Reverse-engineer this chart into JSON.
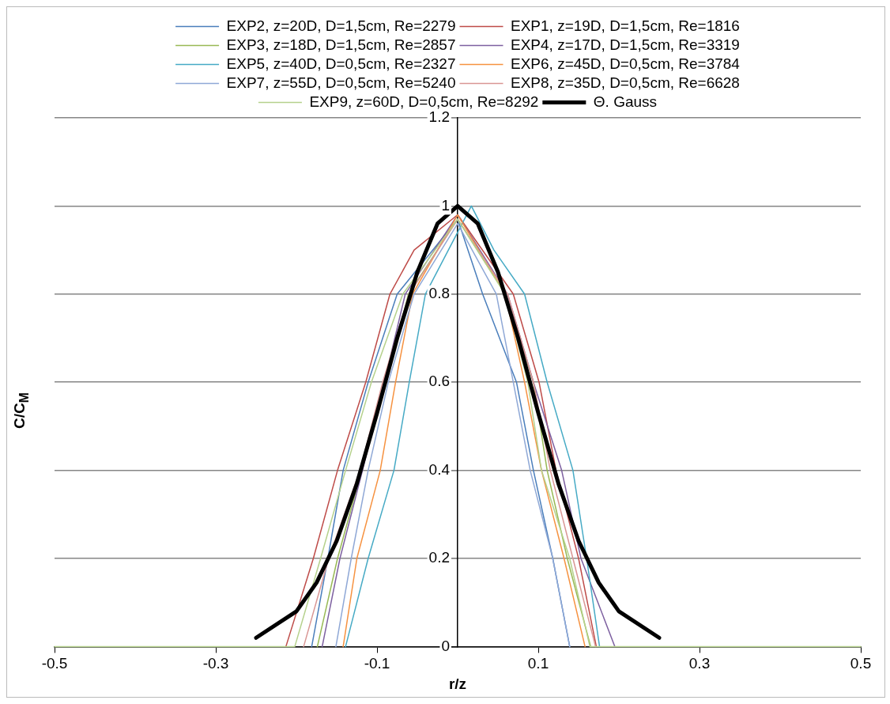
{
  "chart_data": {
    "type": "line",
    "xlabel": "r/z",
    "ylabel": "C/C$_{M}$",
    "xlim": [
      -0.5,
      0.5
    ],
    "xticks": [
      -0.5,
      -0.3,
      -0.1,
      0.1,
      0.3,
      0.5
    ],
    "ylim": [
      0,
      1.2
    ],
    "yticks": [
      0,
      0.2,
      0.4,
      0.6,
      0.8,
      1,
      1.2
    ],
    "grid": "y",
    "legend": "top",
    "marker": "none",
    "line_style": "solid",
    "series": [
      {
        "name": "EXP2, z=20D, D=1,5cm, Re=2279",
        "color": "#4a7ebb",
        "x": [
          -0.181,
          -0.161,
          -0.142,
          -0.111,
          -0.075,
          0,
          0.031,
          0.073,
          0.094,
          0.118,
          0.139
        ],
        "values": [
          0,
          0.2,
          0.4,
          0.6,
          0.8,
          0.97,
          0.8,
          0.6,
          0.4,
          0.2,
          0
        ]
      },
      {
        "name": "EXP1, z=19D, D=1,5cm, Re=1816",
        "color": "#be4b48",
        "x": [
          -0.213,
          -0.179,
          -0.149,
          -0.114,
          -0.084,
          -0.054,
          0,
          0.069,
          0.101,
          0.122,
          0.15,
          0.172
        ],
        "values": [
          0,
          0.2,
          0.4,
          0.6,
          0.8,
          0.9,
          0.98,
          0.8,
          0.6,
          0.4,
          0.2,
          0
        ]
      },
      {
        "name": "EXP3, z=18D, D=1,5cm, Re=2857",
        "color": "#98b954",
        "x": [
          -0.174,
          -0.149,
          -0.119,
          -0.089,
          -0.061,
          0,
          0.059,
          0.094,
          0.111,
          0.136,
          0.165
        ],
        "values": [
          0,
          0.2,
          0.4,
          0.6,
          0.8,
          0.97,
          0.8,
          0.6,
          0.4,
          0.2,
          0
        ]
      },
      {
        "name": "EXP4, z=17D, D=1,5cm, Re=3319",
        "color": "#7d60a0",
        "x": [
          -0.168,
          -0.146,
          -0.118,
          -0.091,
          -0.065,
          0,
          0.062,
          0.094,
          0.129,
          0.153,
          0.195
        ],
        "values": [
          0,
          0.2,
          0.4,
          0.6,
          0.8,
          0.98,
          0.8,
          0.6,
          0.4,
          0.2,
          0
        ]
      },
      {
        "name": "EXP5, z=40D, D=0,5cm, Re=2327",
        "color": "#46aac5",
        "x": [
          -0.139,
          -0.111,
          -0.079,
          -0.06,
          -0.04,
          0.017,
          0.045,
          0.083,
          0.111,
          0.143,
          0.16,
          0.176
        ],
        "values": [
          0,
          0.2,
          0.4,
          0.6,
          0.8,
          1,
          0.9,
          0.8,
          0.6,
          0.4,
          0.2,
          0
        ]
      },
      {
        "name": "EXP6, z=45D, D=0,5cm, Re=3784",
        "color": "#f69240",
        "x": [
          -0.142,
          -0.125,
          -0.096,
          -0.077,
          -0.056,
          0,
          0.059,
          0.083,
          0.104,
          0.132,
          0.158
        ],
        "values": [
          0,
          0.2,
          0.4,
          0.6,
          0.8,
          0.98,
          0.8,
          0.6,
          0.4,
          0.2,
          0
        ]
      },
      {
        "name": "EXP7, z=55D, D=0,5cm, Re=5240",
        "color": "#8fa8d6",
        "x": [
          -0.151,
          -0.132,
          -0.111,
          -0.086,
          -0.054,
          0,
          0.048,
          0.069,
          0.09,
          0.118,
          0.139
        ],
        "values": [
          0,
          0.2,
          0.4,
          0.6,
          0.8,
          0.96,
          0.8,
          0.6,
          0.4,
          0.2,
          0
        ]
      },
      {
        "name": "EXP8, z=35D, D=0,5cm, Re=6628",
        "color": "#d99694",
        "x": [
          -0.191,
          -0.16,
          -0.121,
          -0.093,
          -0.06,
          0,
          0.062,
          0.094,
          0.115,
          0.143,
          0.171
        ],
        "values": [
          0,
          0.2,
          0.4,
          0.6,
          0.8,
          0.97,
          0.8,
          0.6,
          0.4,
          0.2,
          0
        ]
      },
      {
        "name": "EXP9, z=60D, D=0,5cm, Re=8292",
        "color": "#b5d18c",
        "x": [
          -0.5,
          -0.202,
          -0.17,
          -0.139,
          -0.107,
          -0.068,
          0,
          0.059,
          0.087,
          0.104,
          0.139,
          0.164,
          0.5
        ],
        "values": [
          0,
          0,
          0.2,
          0.4,
          0.6,
          0.8,
          0.97,
          0.8,
          0.6,
          0.4,
          0.2,
          0,
          0
        ]
      },
      {
        "name": "Θ. Gauss",
        "color": "#000000",
        "x": [
          -0.25,
          -0.2,
          -0.175,
          -0.15,
          -0.125,
          -0.1,
          -0.075,
          -0.05,
          -0.025,
          0,
          0.025,
          0.05,
          0.075,
          0.1,
          0.125,
          0.15,
          0.175,
          0.2,
          0.25
        ],
        "values": [
          0.02,
          0.08,
          0.145,
          0.24,
          0.37,
          0.53,
          0.7,
          0.85,
          0.96,
          1,
          0.96,
          0.85,
          0.7,
          0.53,
          0.37,
          0.24,
          0.145,
          0.08,
          0.02
        ]
      }
    ]
  }
}
